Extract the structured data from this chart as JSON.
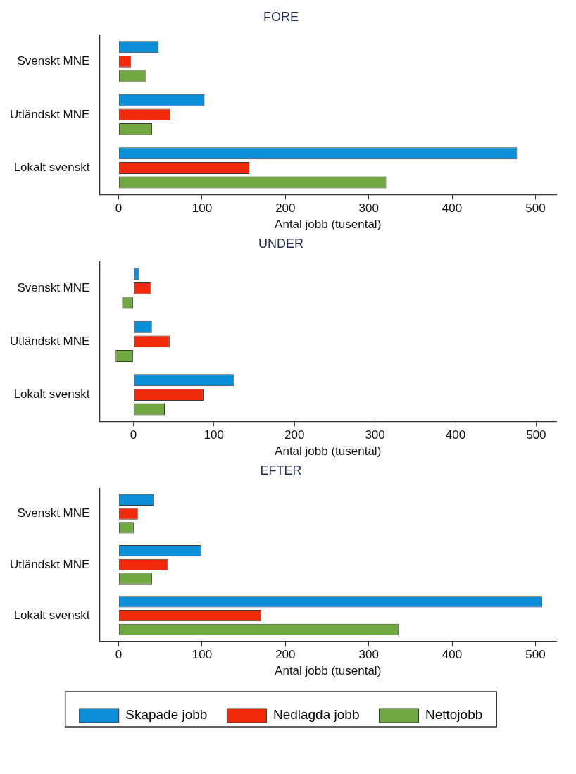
{
  "chart_data": [
    {
      "type": "bar",
      "orientation": "horizontal",
      "title": "FÖRE",
      "xlabel": "Antal jobb (tusental)",
      "categories": [
        "Svenskt MNE",
        "Utländskt MNE",
        "Lokalt svenskt"
      ],
      "xlim": [
        -23,
        525
      ],
      "xticks": [
        0,
        100,
        200,
        300,
        400,
        500
      ],
      "grid": false,
      "series": [
        {
          "color": "#0a8fd8",
          "values": [
            48,
            103,
            478
          ]
        },
        {
          "color": "#f32a0a",
          "values": [
            15,
            62,
            157
          ]
        },
        {
          "color": "#72a842",
          "values": [
            33,
            40,
            321
          ]
        }
      ]
    },
    {
      "type": "bar",
      "orientation": "horizontal",
      "title": "UNDER",
      "xlabel": "Antal jobb (tusental)",
      "categories": [
        "Svenskt MNE",
        "Utländskt MNE",
        "Lokalt svenskt"
      ],
      "xlim": [
        -42,
        525
      ],
      "xticks": [
        0,
        100,
        200,
        300,
        400,
        500
      ],
      "grid": false,
      "series": [
        {
          "color": "#0a8fd8",
          "values": [
            7,
            23,
            125
          ]
        },
        {
          "color": "#f32a0a",
          "values": [
            22,
            45,
            87
          ]
        },
        {
          "color": "#72a842",
          "values": [
            -14,
            -22,
            39
          ]
        }
      ]
    },
    {
      "type": "bar",
      "orientation": "horizontal",
      "title": "EFTER",
      "xlabel": "Antal jobb (tusental)",
      "categories": [
        "Svenskt MNE",
        "Utländskt MNE",
        "Lokalt svenskt"
      ],
      "xlim": [
        -23,
        525
      ],
      "xticks": [
        0,
        100,
        200,
        300,
        400,
        500
      ],
      "grid": false,
      "legend": "bottom",
      "series": [
        {
          "name": "Skapade jobb",
          "color": "#0a8fd8",
          "values": [
            42,
            99,
            508
          ]
        },
        {
          "name": "Nedlagda jobb",
          "color": "#f32a0a",
          "values": [
            23,
            59,
            171
          ]
        },
        {
          "name": "Nettojobb",
          "color": "#72a842",
          "values": [
            18,
            40,
            336
          ]
        }
      ]
    }
  ]
}
